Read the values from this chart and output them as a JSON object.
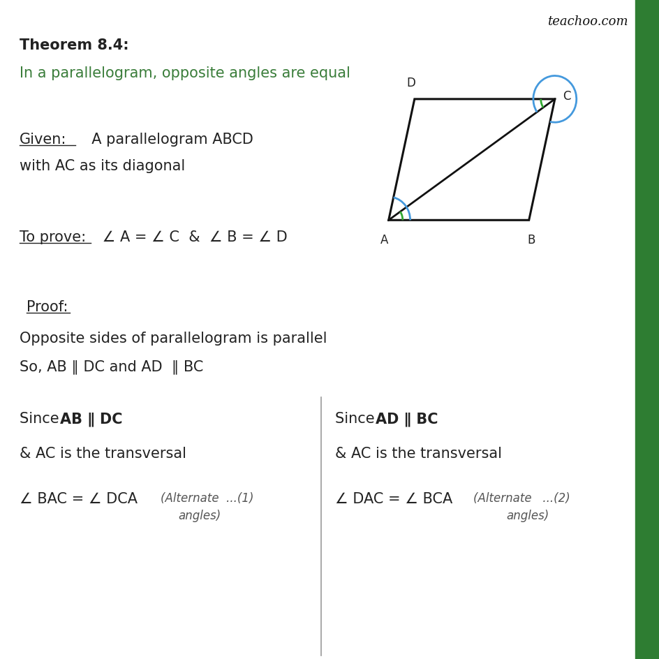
{
  "bg_color": "#ffffff",
  "right_bar_color": "#2e7d32",
  "title_bold": "Theorem 8.4:",
  "subtitle": "In a parallelogram, opposite angles are equal",
  "given_label": "Given:",
  "given_text": "  A parallelogram ABCD",
  "given_text2": "with AC as its diagonal",
  "toprove_label": "To prove:",
  "toprove_text": "  ∠ A = ∠ C  &  ∠ B = ∠ D",
  "proof_label": "Proof:",
  "proof_text1": "Opposite sides of parallelogram is parallel",
  "proof_text2": "So, AB ∥ DC and AD  ∥ BC",
  "teachoo": "teachoo.com",
  "text_color": "#222222",
  "green_text": "#3a7d3a",
  "angle_blue": "#4499dd",
  "angle_green": "#33aa33",
  "para_A": [
    1.5,
    1.0
  ],
  "para_B": [
    8.0,
    1.0
  ],
  "para_C": [
    9.2,
    6.2
  ],
  "para_D": [
    2.7,
    6.2
  ]
}
